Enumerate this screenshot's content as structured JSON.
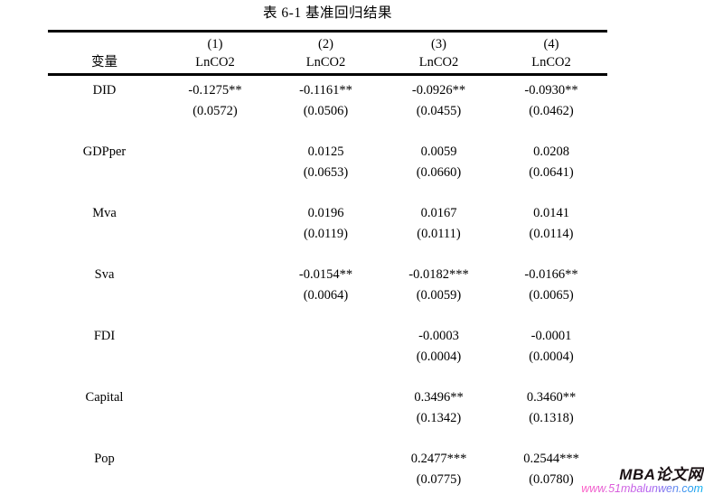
{
  "page": {
    "title": "表 6-1  基准回归结果"
  },
  "table": {
    "variable_header": "变量",
    "columns": [
      {
        "number": "(1)",
        "dep_var": "LnCO2"
      },
      {
        "number": "(2)",
        "dep_var": "LnCO2"
      },
      {
        "number": "(3)",
        "dep_var": "LnCO2"
      },
      {
        "number": "(4)",
        "dep_var": "LnCO2"
      }
    ],
    "rows": [
      {
        "variable": "DID",
        "cells": [
          {
            "coef": "-0.1275**",
            "se": "(0.0572)"
          },
          {
            "coef": "-0.1161**",
            "se": "(0.0506)"
          },
          {
            "coef": "-0.0926**",
            "se": "(0.0455)"
          },
          {
            "coef": "-0.0930**",
            "se": "(0.0462)"
          }
        ]
      },
      {
        "variable": "GDPper",
        "cells": [
          {
            "coef": "",
            "se": ""
          },
          {
            "coef": "0.0125",
            "se": "(0.0653)"
          },
          {
            "coef": "0.0059",
            "se": "(0.0660)"
          },
          {
            "coef": "0.0208",
            "se": "(0.0641)"
          }
        ]
      },
      {
        "variable": "Mva",
        "cells": [
          {
            "coef": "",
            "se": ""
          },
          {
            "coef": "0.0196",
            "se": "(0.0119)"
          },
          {
            "coef": "0.0167",
            "se": "(0.0111)"
          },
          {
            "coef": "0.0141",
            "se": "(0.0114)"
          }
        ]
      },
      {
        "variable": "Sva",
        "cells": [
          {
            "coef": "",
            "se": ""
          },
          {
            "coef": "-0.0154**",
            "se": "(0.0064)"
          },
          {
            "coef": "-0.0182***",
            "se": "(0.0059)"
          },
          {
            "coef": "-0.0166**",
            "se": "(0.0065)"
          }
        ]
      },
      {
        "variable": "FDI",
        "cells": [
          {
            "coef": "",
            "se": ""
          },
          {
            "coef": "",
            "se": ""
          },
          {
            "coef": "-0.0003",
            "se": "(0.0004)"
          },
          {
            "coef": "-0.0001",
            "se": "(0.0004)"
          }
        ]
      },
      {
        "variable": "Capital",
        "cells": [
          {
            "coef": "",
            "se": ""
          },
          {
            "coef": "",
            "se": ""
          },
          {
            "coef": "0.3496**",
            "se": "(0.1342)"
          },
          {
            "coef": "0.3460**",
            "se": "(0.1318)"
          }
        ]
      },
      {
        "variable": "Pop",
        "cells": [
          {
            "coef": "",
            "se": ""
          },
          {
            "coef": "",
            "se": ""
          },
          {
            "coef": "0.2477***",
            "se": "(0.0775)"
          },
          {
            "coef": "0.2544***",
            "se": "(0.0780)"
          }
        ]
      }
    ]
  },
  "watermark": {
    "site_name": "MBA论文网",
    "site_url": "www.51mbalunwen.com",
    "name_color": "#1a1114",
    "url_gradient": [
      "#ff5ec4",
      "#b45cf0",
      "#00aeef"
    ]
  }
}
